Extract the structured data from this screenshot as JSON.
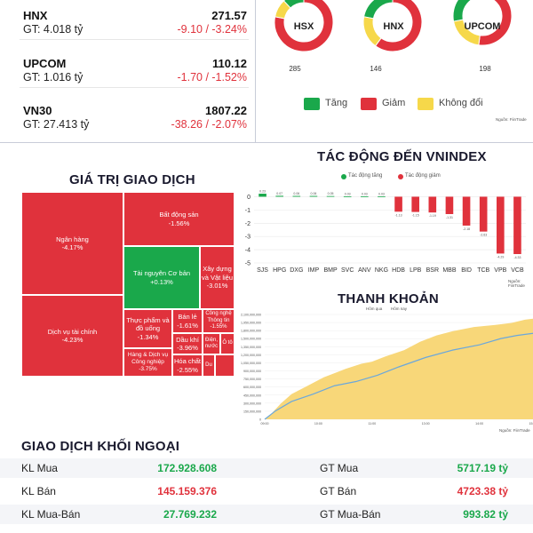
{
  "indices": [
    {
      "name": "HNX",
      "value": "271.57",
      "gt": "GT: 4.018 tỷ",
      "change": "-9.10 / -3.24%"
    },
    {
      "name": "UPCOM",
      "value": "110.12",
      "gt": "GT: 1.016 tỷ",
      "change": "-1.70 / -1.52%"
    },
    {
      "name": "VN30",
      "value": "1807.22",
      "gt": "GT: 27.413 tỷ",
      "change": "-38.26 / -2.07%"
    }
  ],
  "donuts": [
    {
      "name": "HSX",
      "count": "285",
      "green": 0.12,
      "red": 0.78,
      "yellow": 0.1
    },
    {
      "name": "HNX",
      "count": "146",
      "green": 0.22,
      "red": 0.6,
      "yellow": 0.18
    },
    {
      "name": "UPCOM",
      "count": "198",
      "green": 0.28,
      "red": 0.52,
      "yellow": 0.2
    }
  ],
  "breadth_legend": {
    "up": "Tăng",
    "down": "Giảm",
    "flat": "Không đổi",
    "source": "Nguồn: FiinTrade"
  },
  "colors": {
    "up": "#1aa84b",
    "down": "#e0323c",
    "flat": "#f6d84a",
    "area": "#f8d779",
    "line": "#6aa7dc"
  },
  "impact": {
    "title": "TÁC ĐỘNG ĐẾN VNINDEX",
    "legend_up": "Tác động tăng",
    "legend_down": "Tác động giảm",
    "source": "Nguồn: FiinTrade"
  },
  "trade_value": {
    "title": "GIÁ TRỊ GIAO DỊCH"
  },
  "treemap": [
    {
      "name": "Ngân hàng",
      "change": "-4.17%",
      "color": "red"
    },
    {
      "name": "Bất động sản",
      "change": "-1.56%",
      "color": "red"
    },
    {
      "name": "Tài nguyên Cơ bản",
      "change": "+0.13%",
      "color": "green"
    },
    {
      "name": "Xây dựng và Vật liệu",
      "change": "-3.01%",
      "color": "red"
    },
    {
      "name": "Dịch vụ tài chính",
      "change": "-4.23%",
      "color": "red"
    },
    {
      "name": "Thực phẩm và đồ uống",
      "change": "-1.34%",
      "color": "red"
    },
    {
      "name": "Bán lẻ",
      "change": "-1.61%",
      "color": "red"
    },
    {
      "name": "Công nghệ Thông tin",
      "change": "-1.55%",
      "color": "red"
    },
    {
      "name": "Hàng & Dịch vụ Công nghiệp",
      "change": "-3.75%",
      "color": "red"
    },
    {
      "name": "Dầu khí",
      "change": "-3.96%",
      "color": "red"
    },
    {
      "name": "Điện, nước",
      "change": "",
      "color": "red"
    },
    {
      "name": "Ô tô",
      "change": "",
      "color": "red"
    },
    {
      "name": "Hóa chất",
      "change": "-2.55%",
      "color": "red"
    },
    {
      "name": "Du",
      "change": "",
      "color": "red"
    },
    {
      "name": "",
      "change": "",
      "color": "red"
    }
  ],
  "liquidity": {
    "title": "THANH KHOẢN",
    "legend_today": "Hôm qua",
    "legend_yest": "Hôm nay",
    "source": "Nguồn: FiinTrade",
    "y_ticks": [
      "2,100,000,000",
      "1,950,000,000",
      "1,800,000,000",
      "1,500,000,000",
      "1,350,000,000",
      "1,200,000,000",
      "1,050,000,000",
      "900,000,000",
      "750,000,000",
      "600,000,000",
      "450,000,000",
      "300,000,000",
      "150,000,000",
      "0"
    ],
    "x_ticks": [
      "09:00",
      "10:00",
      "11:00",
      "13:00",
      "14:00",
      "15:00"
    ]
  },
  "chart_data": {
    "type": "bar",
    "title": "TÁC ĐỘNG ĐẾN VNINDEX",
    "categories": [
      "SJS",
      "HPG",
      "DXG",
      "IMP",
      "BMP",
      "SVC",
      "ANV",
      "NKG",
      "HDB",
      "LPB",
      "BSR",
      "MBB",
      "BID",
      "TCB",
      "VPB",
      "VCB"
    ],
    "values": [
      0.23,
      0.07,
      0.06,
      0.06,
      0.05,
      0.03,
      0.03,
      0.03,
      -1.13,
      -1.15,
      -1.19,
      -1.31,
      -2.18,
      -2.63,
      -4.29,
      -4.33
    ],
    "value_labels": [
      "0.23",
      "0.07",
      "0.06",
      "0.06",
      "0.05",
      "0.03",
      "0.03",
      "0.03",
      "-1.13",
      "-1.15",
      "-1.19",
      "-1.31",
      "-2.18",
      "-2.63",
      "-4.29",
      "-4.33"
    ],
    "y_ticks": [
      "0",
      "-1",
      "-2",
      "-3",
      "-4",
      "-5"
    ],
    "ylim": [
      -5,
      0.5
    ]
  },
  "foreign": {
    "title": "GIAO DỊCH KHỐI NGOẠI",
    "rows": [
      {
        "l1": "KL Mua",
        "v1": "172.928.608",
        "c1": "#1aa84b",
        "l2": "GT Mua",
        "v2": "5717.19 tỷ",
        "c2": "#1aa84b"
      },
      {
        "l1": "KL Bán",
        "v1": "145.159.376",
        "c1": "#e0323c",
        "l2": "GT Bán",
        "v2": "4723.38 tỷ",
        "c2": "#e0323c"
      },
      {
        "l1": "KL Mua-Bán",
        "v1": "27.769.232",
        "c1": "#1aa84b",
        "l2": "GT Mua-Bán",
        "v2": "993.82 tỷ",
        "c2": "#1aa84b"
      }
    ]
  }
}
